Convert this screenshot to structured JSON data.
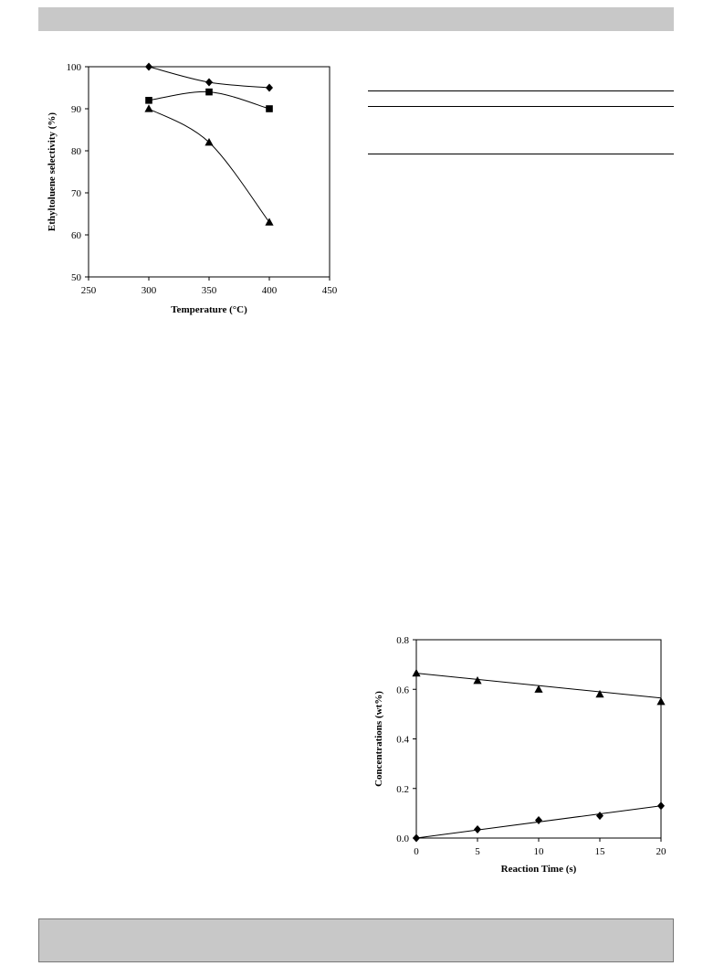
{
  "page": {
    "header_color": "#c8c8c8",
    "footer_color": "#c8c8c8"
  },
  "chart_data": [
    {
      "type": "line",
      "xlabel": "Temperature (°C)",
      "ylabel": "Ethyltoluene selectivity (%)",
      "xlim": [
        250,
        450
      ],
      "ylim": [
        50,
        100
      ],
      "xticks": [
        250,
        300,
        350,
        400,
        450
      ],
      "yticks": [
        50,
        60,
        70,
        80,
        90,
        100
      ],
      "grid": false,
      "series": [
        {
          "marker": "diamond",
          "x": [
            300,
            350,
            400
          ],
          "y": [
            100,
            96.3,
            95
          ]
        },
        {
          "marker": "square",
          "x": [
            300,
            350,
            400
          ],
          "y": [
            92,
            94,
            90
          ]
        },
        {
          "marker": "triangle",
          "x": [
            300,
            350,
            400
          ],
          "y": [
            90,
            82,
            63
          ]
        }
      ]
    },
    {
      "type": "scatter",
      "xlabel": "Reaction Time (s)",
      "ylabel": "Concentrations (wt%)",
      "xlim": [
        0,
        20
      ],
      "ylim": [
        0,
        0.8
      ],
      "xticks": [
        0,
        5,
        10,
        15,
        20
      ],
      "yticks": [
        "0.0",
        "0.2",
        "0.4",
        "0.6",
        "0.8"
      ],
      "grid": false,
      "series": [
        {
          "marker": "triangle",
          "x": [
            0,
            5,
            10,
            15,
            20
          ],
          "y": [
            0.665,
            0.635,
            0.6,
            0.58,
            0.55
          ],
          "trendline": [
            0.665,
            0.565
          ]
        },
        {
          "marker": "diamond",
          "x": [
            0,
            5,
            10,
            15,
            20
          ],
          "y": [
            0.0,
            0.035,
            0.072,
            0.09,
            0.13
          ],
          "trendline": [
            0.0,
            0.13
          ]
        }
      ]
    }
  ]
}
